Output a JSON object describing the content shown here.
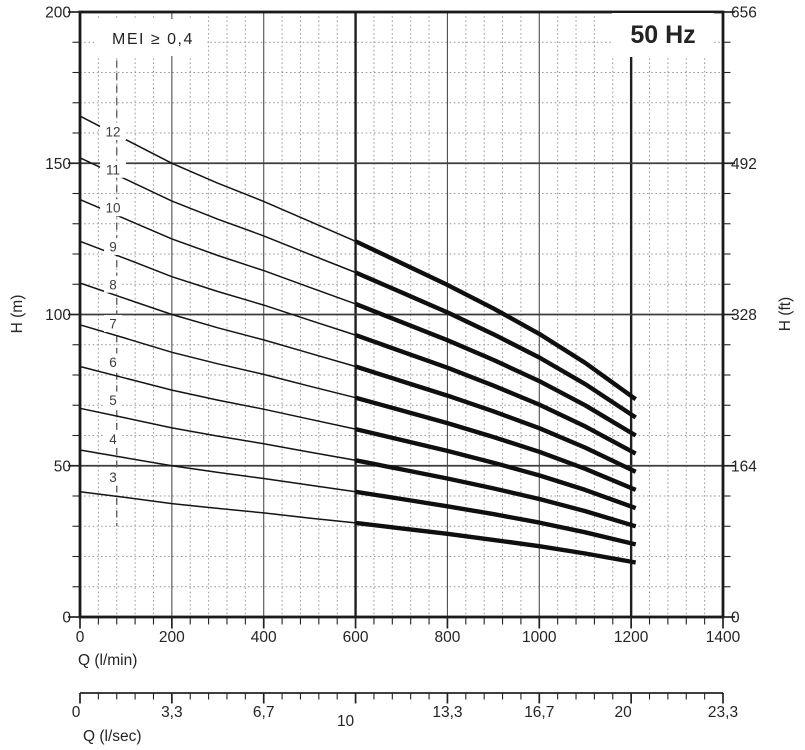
{
  "chart_data": {
    "type": "line",
    "frequency_label": "50 Hz",
    "mei_label": "MEI ≥ 0,4",
    "x_axis": {
      "label": "Q (l/min)",
      "min": 0,
      "max": 1400,
      "major_tick_step": 200,
      "minor_tick_step": 40,
      "tick_values": [
        0,
        200,
        400,
        600,
        800,
        1000,
        1200,
        1400
      ],
      "tick_labels": [
        "0",
        "200",
        "400",
        "600",
        "800",
        "1000",
        "1200",
        "1400"
      ]
    },
    "y_axis": {
      "label": "H (m)",
      "min": 0,
      "max": 200,
      "major_tick_step": 50,
      "minor_tick_step": 10,
      "tick_values": [
        200,
        150,
        100,
        50,
        0
      ],
      "tick_labels": [
        "200",
        "150",
        "100",
        "50",
        "0"
      ]
    },
    "y2_axis": {
      "label": "H (ft)",
      "tick_values_m": [
        200,
        150,
        100,
        50,
        0
      ],
      "tick_labels": [
        "656",
        "492",
        "328",
        "164",
        "0"
      ]
    },
    "x2_axis": {
      "label": "Q (l/sec)",
      "minor_step_lmin": 40,
      "ticks": [
        {
          "label": "0",
          "q_lmin": 0,
          "dx": -4
        },
        {
          "label": "3,3",
          "q_lmin": 200
        },
        {
          "label": "6,7",
          "q_lmin": 400
        },
        {
          "label": "10",
          "q_lmin": 600,
          "dx": -10,
          "dy": 9
        },
        {
          "label": "13,3",
          "q_lmin": 800
        },
        {
          "label": "16,7",
          "q_lmin": 1000
        },
        {
          "label": "20",
          "q_lmin": 1200,
          "dx": -8
        },
        {
          "label": "23,3",
          "q_lmin": 1400
        }
      ]
    },
    "grid": "on",
    "emphasized_x_gridlines": [
      600,
      1200
    ],
    "operating_range_lmin": [
      600,
      1210
    ],
    "min_flow_line": {
      "q_lmin": 80,
      "h_top_m": 184,
      "h_bottom_m": 30,
      "style": "dashed"
    },
    "label_q_lmin": 72,
    "q_points_lmin": [
      0,
      100,
      200,
      300,
      400,
      500,
      600,
      700,
      800,
      900,
      1000,
      1100,
      1210
    ],
    "series": [
      {
        "name": "12",
        "label_h_m": 160.5,
        "h_m": [
          165.6,
          157.8,
          150.0,
          143.4,
          137.4,
          130.8,
          124.2,
          117.0,
          109.8,
          102.0,
          93.6,
          84.0,
          72.0
        ]
      },
      {
        "name": "11",
        "label_h_m": 148.0,
        "h_m": [
          151.8,
          144.7,
          137.5,
          131.5,
          126.0,
          119.9,
          113.9,
          107.3,
          100.7,
          93.5,
          85.8,
          77.0,
          66.0
        ]
      },
      {
        "name": "10",
        "label_h_m": 135.3,
        "h_m": [
          138.0,
          131.5,
          125.0,
          119.5,
          114.5,
          109.0,
          103.5,
          97.5,
          91.5,
          85.0,
          78.0,
          70.0,
          60.0
        ]
      },
      {
        "name": "9",
        "label_h_m": 122.5,
        "h_m": [
          124.2,
          118.4,
          112.5,
          107.6,
          103.1,
          98.1,
          93.2,
          87.8,
          82.4,
          76.5,
          70.2,
          63.0,
          54.0
        ]
      },
      {
        "name": "8",
        "label_h_m": 110.0,
        "h_m": [
          110.4,
          105.2,
          100.0,
          95.6,
          91.6,
          87.2,
          82.8,
          78.0,
          73.2,
          68.0,
          62.4,
          56.0,
          48.0
        ]
      },
      {
        "name": "7",
        "label_h_m": 97.0,
        "h_m": [
          96.6,
          92.1,
          87.5,
          83.7,
          80.2,
          76.3,
          72.5,
          68.3,
          64.1,
          59.5,
          54.6,
          49.0,
          42.0
        ]
      },
      {
        "name": "6",
        "label_h_m": 84.3,
        "h_m": [
          82.8,
          78.9,
          75.0,
          71.7,
          68.7,
          65.4,
          62.1,
          58.5,
          54.9,
          51.0,
          46.8,
          42.0,
          36.0
        ]
      },
      {
        "name": "5",
        "label_h_m": 71.7,
        "h_m": [
          69.0,
          65.8,
          62.5,
          59.8,
          57.3,
          54.5,
          51.8,
          48.8,
          45.8,
          42.5,
          39.0,
          35.0,
          30.0
        ]
      },
      {
        "name": "4",
        "label_h_m": 58.8,
        "h_m": [
          55.2,
          52.6,
          50.0,
          47.8,
          45.8,
          43.6,
          41.4,
          39.0,
          36.6,
          34.0,
          31.2,
          28.0,
          24.0
        ]
      },
      {
        "name": "3",
        "label_h_m": 46.2,
        "h_m": [
          41.4,
          39.5,
          37.5,
          35.9,
          34.4,
          32.7,
          31.1,
          29.3,
          27.5,
          25.5,
          23.4,
          21.0,
          18.0
        ]
      }
    ],
    "colors": {
      "curve": "#0f0f0f",
      "frame": "#1a1a1a",
      "grid_major": "#4f4f4f",
      "grid_minor": "#999999",
      "text": "#242424",
      "background": "#ffffff"
    }
  }
}
